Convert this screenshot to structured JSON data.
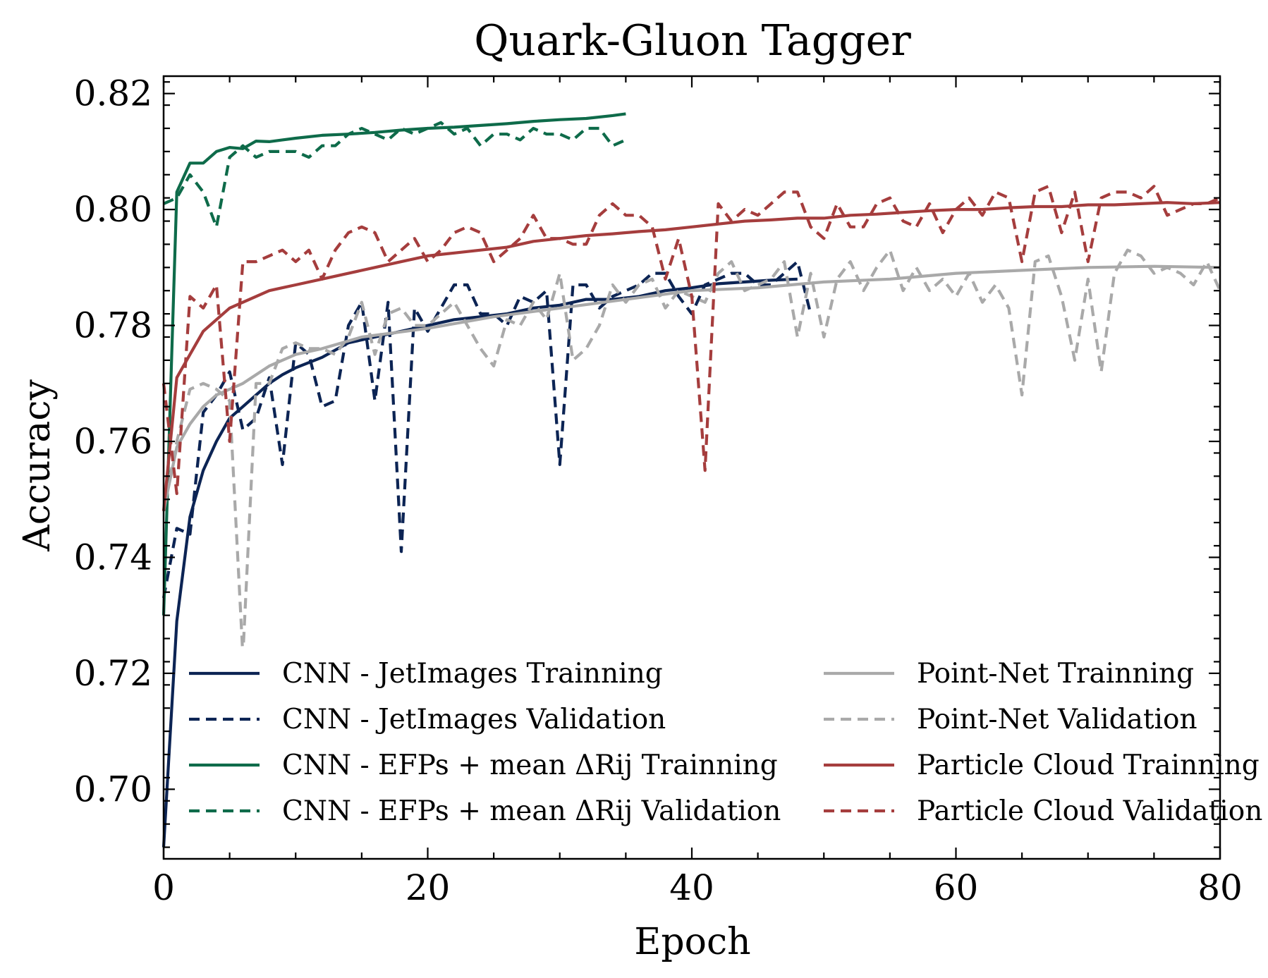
{
  "chart_data": {
    "type": "line",
    "title": "Quark-Gluon Tagger",
    "xlabel": "Epoch",
    "ylabel": "Accuracy",
    "xlim": [
      0,
      80
    ],
    "ylim": [
      0.688,
      0.823
    ],
    "xticks": [
      0,
      20,
      40,
      60,
      80
    ],
    "xtick_labels": [
      "0",
      "20",
      "40",
      "60",
      "80"
    ],
    "yticks": [
      0.7,
      0.72,
      0.74,
      0.76,
      0.78,
      0.8,
      0.82
    ],
    "ytick_labels": [
      "0.70",
      "0.72",
      "0.74",
      "0.76",
      "0.78",
      "0.80",
      "0.82"
    ],
    "grid": false,
    "legend_position": "lower-center",
    "series": [
      {
        "name": "CNN - JetImages Trainning",
        "color": "#0c2454",
        "dash": "solid",
        "x": [
          0,
          1,
          2,
          3,
          4,
          5,
          6,
          7,
          8,
          9,
          10,
          12,
          14,
          16,
          18,
          20,
          22,
          24,
          26,
          28,
          30,
          32,
          34,
          36,
          38,
          40,
          42,
          44,
          46,
          48
        ],
        "values": [
          0.69,
          0.729,
          0.747,
          0.755,
          0.76,
          0.764,
          0.766,
          0.768,
          0.77,
          0.7715,
          0.7727,
          0.7745,
          0.777,
          0.778,
          0.779,
          0.78,
          0.781,
          0.7815,
          0.782,
          0.783,
          0.7835,
          0.7845,
          0.7845,
          0.785,
          0.786,
          0.7865,
          0.7872,
          0.7875,
          0.7878,
          0.788
        ]
      },
      {
        "name": "CNN - JetImages Validation",
        "color": "#0c2454",
        "dash": "dashed",
        "x": [
          0,
          1,
          2,
          3,
          4,
          5,
          6,
          7,
          8,
          9,
          10,
          11,
          12,
          13,
          14,
          15,
          16,
          17,
          18,
          19,
          20,
          21,
          22,
          23,
          24,
          25,
          26,
          27,
          28,
          29,
          30,
          31,
          32,
          33,
          34,
          35,
          36,
          37,
          38,
          39,
          40,
          41,
          42,
          43,
          44,
          45,
          46,
          47,
          48,
          49
        ],
        "values": [
          0.733,
          0.745,
          0.744,
          0.765,
          0.768,
          0.772,
          0.762,
          0.764,
          0.771,
          0.756,
          0.777,
          0.775,
          0.766,
          0.767,
          0.78,
          0.784,
          0.767,
          0.784,
          0.741,
          0.783,
          0.779,
          0.783,
          0.787,
          0.787,
          0.782,
          0.782,
          0.78,
          0.785,
          0.784,
          0.786,
          0.756,
          0.787,
          0.787,
          0.783,
          0.785,
          0.786,
          0.787,
          0.789,
          0.789,
          0.785,
          0.782,
          0.787,
          0.788,
          0.789,
          0.789,
          0.787,
          0.787,
          0.789,
          0.791,
          0.782
        ]
      },
      {
        "name": "CNN - EFPs + mean ΔRij Trainning",
        "color": "#0e6b4a",
        "dash": "solid",
        "x": [
          0,
          1,
          2,
          3,
          4,
          5,
          6,
          7,
          8,
          9,
          10,
          12,
          14,
          16,
          18,
          20,
          22,
          24,
          26,
          28,
          30,
          32,
          34,
          35
        ],
        "values": [
          0.73,
          0.803,
          0.808,
          0.808,
          0.81,
          0.8107,
          0.8105,
          0.8118,
          0.8117,
          0.812,
          0.8123,
          0.8128,
          0.813,
          0.8133,
          0.8137,
          0.814,
          0.8142,
          0.8145,
          0.8148,
          0.8152,
          0.8155,
          0.8157,
          0.8162,
          0.8165
        ]
      },
      {
        "name": "CNN - EFPs + mean ΔRij Validation",
        "color": "#0e6b4a",
        "dash": "dashed",
        "x": [
          0,
          1,
          2,
          3,
          4,
          5,
          6,
          7,
          8,
          9,
          10,
          11,
          12,
          13,
          14,
          15,
          16,
          17,
          18,
          19,
          20,
          21,
          22,
          23,
          24,
          25,
          26,
          27,
          28,
          29,
          30,
          31,
          32,
          33,
          34,
          35
        ],
        "values": [
          0.801,
          0.802,
          0.806,
          0.803,
          0.797,
          0.809,
          0.811,
          0.809,
          0.81,
          0.81,
          0.81,
          0.809,
          0.811,
          0.811,
          0.813,
          0.814,
          0.813,
          0.812,
          0.814,
          0.813,
          0.814,
          0.815,
          0.813,
          0.814,
          0.811,
          0.813,
          0.813,
          0.812,
          0.814,
          0.813,
          0.813,
          0.812,
          0.814,
          0.814,
          0.811,
          0.812
        ]
      },
      {
        "name": "Point-Net Trainning",
        "color": "#a9a9a9",
        "dash": "solid",
        "x": [
          0,
          1,
          2,
          3,
          4,
          5,
          6,
          8,
          10,
          12,
          15,
          20,
          25,
          30,
          35,
          40,
          45,
          50,
          55,
          60,
          65,
          70,
          75,
          80
        ],
        "values": [
          0.748,
          0.759,
          0.763,
          0.766,
          0.768,
          0.769,
          0.77,
          0.773,
          0.775,
          0.776,
          0.778,
          0.7795,
          0.7815,
          0.783,
          0.7845,
          0.786,
          0.7865,
          0.7875,
          0.788,
          0.789,
          0.7895,
          0.79,
          0.7902,
          0.79
        ]
      },
      {
        "name": "Point-Net Validation",
        "color": "#a9a9a9",
        "dash": "dashed",
        "x": [
          0,
          1,
          2,
          3,
          4,
          5,
          6,
          7,
          8,
          9,
          10,
          11,
          12,
          13,
          14,
          15,
          16,
          17,
          18,
          19,
          20,
          22,
          24,
          25,
          26,
          27,
          28,
          29,
          30,
          31,
          32,
          33,
          34,
          35,
          36,
          37,
          38,
          39,
          40,
          41,
          42,
          43,
          44,
          45,
          46,
          47,
          48,
          49,
          50,
          51,
          52,
          53,
          54,
          55,
          56,
          57,
          58,
          59,
          60,
          61,
          62,
          63,
          64,
          65,
          66,
          67,
          68,
          69,
          70,
          71,
          72,
          73,
          74,
          75,
          76,
          77,
          78,
          79,
          80
        ],
        "values": [
          0.748,
          0.76,
          0.769,
          0.77,
          0.769,
          0.767,
          0.723,
          0.77,
          0.77,
          0.776,
          0.777,
          0.776,
          0.776,
          0.775,
          0.778,
          0.784,
          0.775,
          0.782,
          0.783,
          0.78,
          0.78,
          0.784,
          0.776,
          0.773,
          0.781,
          0.78,
          0.784,
          0.781,
          0.789,
          0.774,
          0.776,
          0.78,
          0.787,
          0.784,
          0.787,
          0.788,
          0.783,
          0.786,
          0.785,
          0.784,
          0.789,
          0.791,
          0.786,
          0.787,
          0.788,
          0.791,
          0.778,
          0.789,
          0.778,
          0.788,
          0.791,
          0.786,
          0.79,
          0.793,
          0.786,
          0.79,
          0.786,
          0.788,
          0.785,
          0.789,
          0.784,
          0.787,
          0.783,
          0.768,
          0.791,
          0.792,
          0.785,
          0.774,
          0.788,
          0.772,
          0.789,
          0.793,
          0.792,
          0.789,
          0.79,
          0.789,
          0.787,
          0.791,
          0.786
        ]
      },
      {
        "name": "Particle Cloud Trainning",
        "color": "#a53d3d",
        "dash": "solid",
        "x": [
          0,
          1,
          2,
          3,
          4,
          5,
          6,
          7,
          8,
          9,
          10,
          12,
          14,
          16,
          18,
          20,
          22,
          24,
          26,
          28,
          30,
          32,
          34,
          36,
          38,
          40,
          42,
          44,
          46,
          48,
          50,
          52,
          54,
          56,
          58,
          60,
          62,
          64,
          66,
          68,
          70,
          72,
          74,
          76,
          78,
          80
        ],
        "values": [
          0.748,
          0.771,
          0.775,
          0.779,
          0.781,
          0.783,
          0.784,
          0.785,
          0.786,
          0.7865,
          0.787,
          0.788,
          0.789,
          0.79,
          0.791,
          0.792,
          0.7925,
          0.793,
          0.7935,
          0.7945,
          0.795,
          0.7955,
          0.7958,
          0.7962,
          0.7965,
          0.797,
          0.7975,
          0.798,
          0.7982,
          0.7985,
          0.7985,
          0.799,
          0.7992,
          0.7995,
          0.7998,
          0.8,
          0.8,
          0.8003,
          0.8005,
          0.8005,
          0.8008,
          0.8008,
          0.801,
          0.8012,
          0.801,
          0.8012
        ]
      },
      {
        "name": "Particle Cloud Validation",
        "color": "#a53d3d",
        "dash": "dashed",
        "x": [
          0,
          1,
          2,
          3,
          4,
          5,
          6,
          7,
          8,
          9,
          10,
          11,
          12,
          13,
          14,
          15,
          16,
          17,
          18,
          19,
          20,
          21,
          22,
          23,
          24,
          25,
          26,
          27,
          28,
          29,
          30,
          31,
          32,
          33,
          34,
          35,
          36,
          37,
          38,
          39,
          40,
          41,
          42,
          43,
          44,
          45,
          46,
          47,
          48,
          49,
          50,
          51,
          52,
          53,
          54,
          55,
          56,
          57,
          58,
          59,
          60,
          61,
          62,
          63,
          64,
          65,
          66,
          67,
          68,
          69,
          70,
          71,
          72,
          73,
          74,
          75,
          76,
          77,
          78,
          79,
          80
        ],
        "values": [
          0.77,
          0.751,
          0.785,
          0.783,
          0.787,
          0.76,
          0.791,
          0.791,
          0.792,
          0.793,
          0.791,
          0.793,
          0.788,
          0.793,
          0.796,
          0.797,
          0.796,
          0.791,
          0.793,
          0.795,
          0.791,
          0.793,
          0.796,
          0.797,
          0.796,
          0.791,
          0.793,
          0.795,
          0.799,
          0.795,
          0.795,
          0.794,
          0.794,
          0.799,
          0.801,
          0.799,
          0.799,
          0.797,
          0.788,
          0.795,
          0.785,
          0.755,
          0.801,
          0.798,
          0.8,
          0.799,
          0.801,
          0.803,
          0.803,
          0.797,
          0.795,
          0.801,
          0.797,
          0.797,
          0.801,
          0.802,
          0.798,
          0.797,
          0.801,
          0.796,
          0.8,
          0.802,
          0.799,
          0.803,
          0.802,
          0.791,
          0.803,
          0.804,
          0.796,
          0.803,
          0.791,
          0.802,
          0.803,
          0.803,
          0.802,
          0.804,
          0.799,
          0.8,
          0.801,
          0.801,
          0.802
        ]
      }
    ]
  }
}
